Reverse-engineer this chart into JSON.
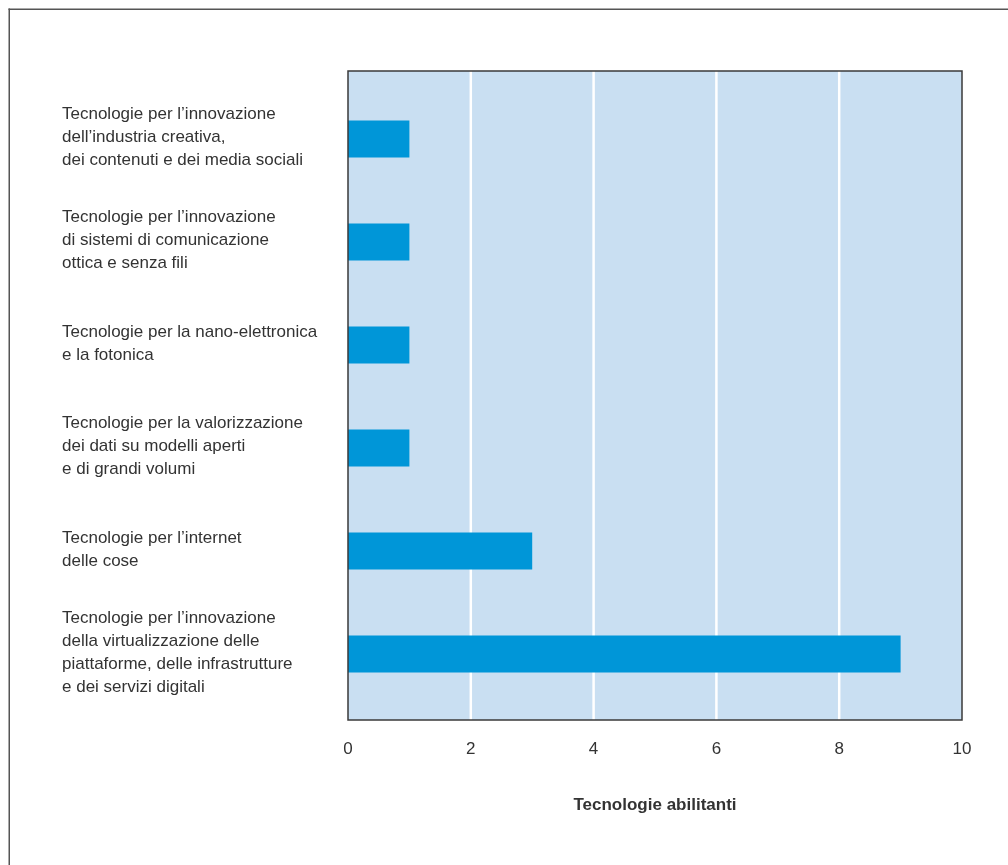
{
  "chart_data": {
    "type": "bar",
    "orientation": "horizontal",
    "xlabel": "Tecnologie abilitanti",
    "categories": [
      "Tecnologie per l’innovazione\ndell’industria creativa,\ndei contenuti e dei media sociali",
      "Tecnologie per l’innovazione\ndi sistemi di comunicazione\nottica e senza fili",
      "Tecnologie per la nano-elettronica\ne la fotonica",
      "Tecnologie per la valorizzazione\ndei dati su modelli aperti\ne di grandi volumi",
      "Tecnologie per l’internet\ndelle cose",
      "Tecnologie per l’innovazione\ndella virtualizzazione delle\npiattaforme, delle infrastrutture\ne dei servizi digitali"
    ],
    "values": [
      1,
      1,
      1,
      1,
      3,
      9
    ],
    "color": "#0096d8",
    "xlim": [
      0,
      10
    ],
    "xticks": [
      0,
      2,
      4,
      6,
      8,
      10
    ],
    "grid": "x"
  }
}
